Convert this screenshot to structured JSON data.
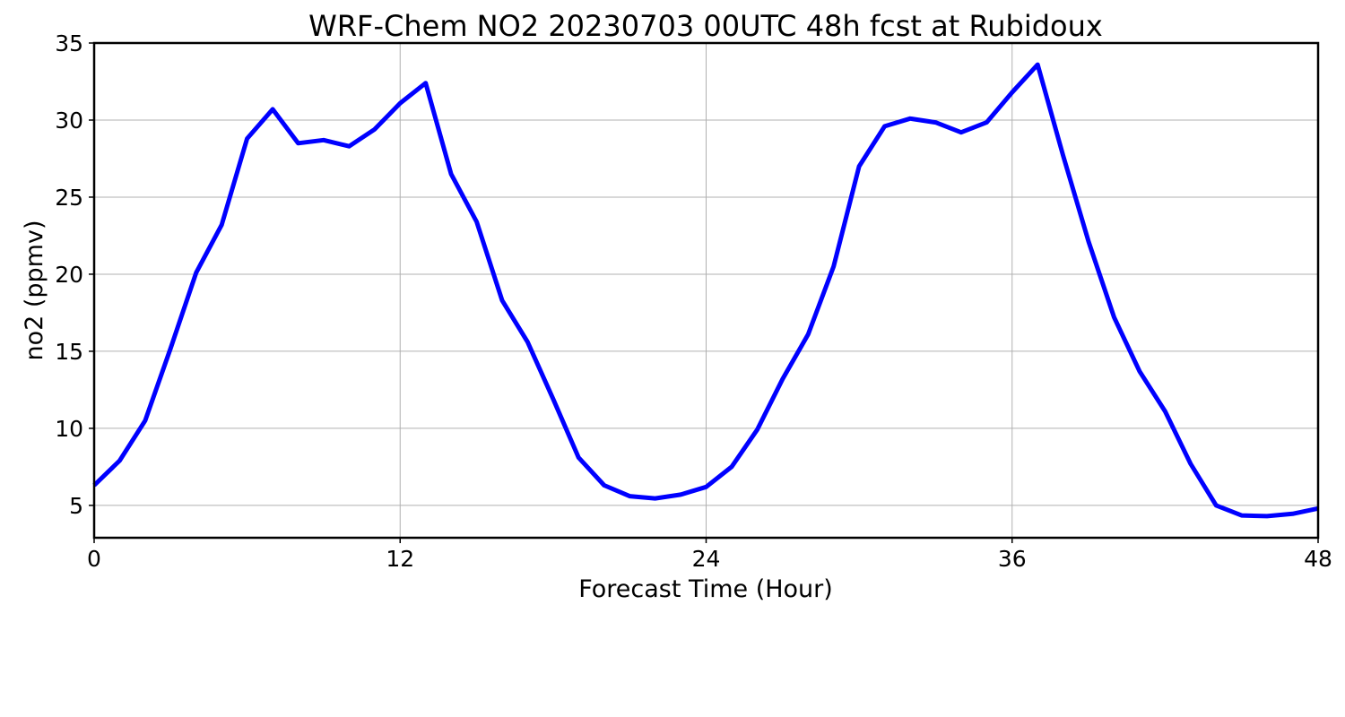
{
  "chart_data": {
    "type": "line",
    "title": "WRF-Chem NO2  20230703 00UTC 48h fcst at Rubidoux",
    "xlabel": "Forecast Time (Hour)",
    "ylabel": "no2  (ppmv)",
    "xlim": [
      0,
      48
    ],
    "ylim": [
      2.9,
      35
    ],
    "xticks": [
      0,
      12,
      24,
      36,
      48
    ],
    "yticks": [
      5,
      10,
      15,
      20,
      25,
      30,
      35
    ],
    "grid": true,
    "series": [
      {
        "color": "#0000ff",
        "x": [
          0,
          1,
          2,
          3,
          4,
          5,
          6,
          7,
          8,
          9,
          10,
          11,
          12,
          13,
          14,
          15,
          16,
          17,
          18,
          19,
          20,
          21,
          22,
          23,
          24,
          25,
          26,
          27,
          28,
          29,
          30,
          31,
          32,
          33,
          34,
          35,
          36,
          37,
          38,
          39,
          40,
          41,
          42,
          43,
          44,
          45,
          46,
          47,
          48
        ],
        "y": [
          6.3,
          7.9,
          10.5,
          15.2,
          20.1,
          23.2,
          28.8,
          30.7,
          28.5,
          28.7,
          28.3,
          29.4,
          31.1,
          32.4,
          26.5,
          23.4,
          18.3,
          15.6,
          11.9,
          8.1,
          6.3,
          5.6,
          5.45,
          5.7,
          6.2,
          7.5,
          9.9,
          13.2,
          16.1,
          20.5,
          27.0,
          29.6,
          30.1,
          29.85,
          29.2,
          29.85,
          31.8,
          33.6,
          27.7,
          22.1,
          17.2,
          13.7,
          11.1,
          7.7,
          5.0,
          4.35,
          4.3,
          4.45,
          4.8
        ]
      }
    ]
  }
}
